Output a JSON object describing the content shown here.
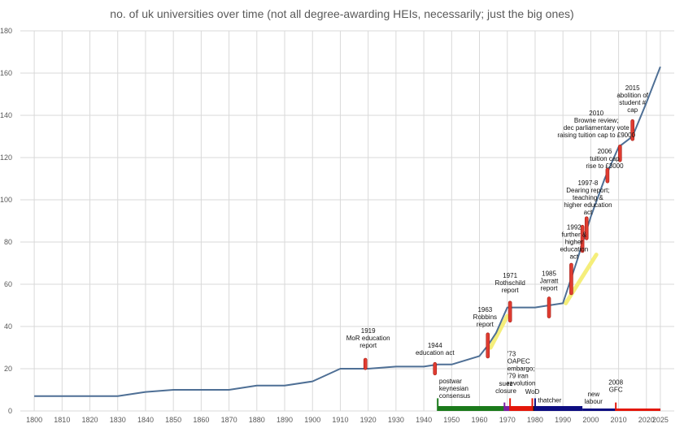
{
  "chart_data": {
    "type": "line",
    "title": "no. of uk universities over time (not all degree-awarding HEIs, necessarily; just the big ones)",
    "xlabel": "",
    "ylabel": "",
    "xlim": [
      1795,
      2030
    ],
    "ylim": [
      0,
      180
    ],
    "x_ticks": [
      1800,
      1810,
      1820,
      1830,
      1840,
      1850,
      1860,
      1870,
      1880,
      1890,
      1900,
      1910,
      1920,
      1930,
      1940,
      1950,
      1960,
      1970,
      1980,
      1990,
      2000,
      2010,
      2020,
      2025
    ],
    "y_ticks": [
      0,
      20,
      40,
      60,
      80,
      100,
      120,
      140,
      160,
      180
    ],
    "grid": true,
    "colors": {
      "line": "#4e6f95",
      "grid": "#d9d9d9",
      "marker": "#e03c31",
      "marker_border": "#a11c14",
      "highlight": "#f5ee7a",
      "era_postwar": "#1b7a1b",
      "era_suez": "#7a1fa2",
      "era_oapec": "#e3170a",
      "era_wod": "#1a1a1a",
      "era_thatcher": "#0d0d80",
      "era_new_labour": "#0d0d80",
      "era_gfc": "#e3170a"
    },
    "series": [
      {
        "name": "no. of uk universities",
        "x": [
          1800,
          1830,
          1840,
          1850,
          1860,
          1870,
          1880,
          1890,
          1900,
          1910,
          1920,
          1930,
          1940,
          1945,
          1950,
          1960,
          1963,
          1966,
          1970,
          1975,
          1980,
          1985,
          1990,
          1995,
          2000,
          2005,
          2010,
          2015,
          2020,
          2025
        ],
        "y": [
          7,
          7,
          9,
          10,
          10,
          10,
          12,
          12,
          14,
          20,
          20,
          21,
          21,
          22,
          22,
          26,
          31,
          37,
          49,
          49,
          49,
          50,
          51,
          71,
          92,
          110,
          125,
          130,
          146,
          163
        ]
      }
    ],
    "event_markers": [
      {
        "x": 1919,
        "y": 19.5,
        "y2": 25
      },
      {
        "x": 1944,
        "y": 17,
        "y2": 23
      },
      {
        "x": 1963,
        "y": 25,
        "y2": 37
      },
      {
        "x": 1971,
        "y": 42,
        "y2": 52
      },
      {
        "x": 1985,
        "y": 44,
        "y2": 54
      },
      {
        "x": 1993,
        "y": 55,
        "y2": 70
      },
      {
        "x": 1997,
        "y": 75,
        "y2": 88
      },
      {
        "x": 1998.5,
        "y": 81,
        "y2": 92
      },
      {
        "x": 2006,
        "y": 108,
        "y2": 115
      },
      {
        "x": 2010.5,
        "y": 118,
        "y2": 126
      },
      {
        "x": 2015,
        "y": 128,
        "y2": 138
      }
    ],
    "highlights": [
      {
        "x1": 1964,
        "y1": 30,
        "x2": 1970,
        "y2": 45
      },
      {
        "x1": 1991,
        "y1": 51,
        "x2": 2002,
        "y2": 74
      }
    ],
    "annotations": [
      {
        "lines": [
          "1919",
          "MoR education",
          "report"
        ],
        "x": 1920,
        "y": 37,
        "anchor": "middle"
      },
      {
        "lines": [
          "1944",
          "education act"
        ],
        "x": 1944,
        "y": 30,
        "anchor": "middle"
      },
      {
        "lines": [
          "1963",
          "Robbins",
          "report"
        ],
        "x": 1962,
        "y": 47,
        "anchor": "middle"
      },
      {
        "lines": [
          "1971",
          "Rothschild",
          "report"
        ],
        "x": 1971,
        "y": 63,
        "anchor": "middle"
      },
      {
        "lines": [
          "1985",
          "Jarratt",
          "report"
        ],
        "x": 1985,
        "y": 64,
        "anchor": "middle"
      },
      {
        "lines": [
          "1992",
          "further &",
          "higher",
          "education",
          "act"
        ],
        "x": 1994,
        "y": 86,
        "anchor": "middle"
      },
      {
        "lines": [
          "1997-8",
          "Dearing report;",
          "teaching &",
          "higher education",
          "act"
        ],
        "x": 1999,
        "y": 107,
        "anchor": "middle"
      },
      {
        "lines": [
          "2006",
          "tuition cap",
          "rise to £3000"
        ],
        "x": 2005,
        "y": 122,
        "anchor": "middle"
      },
      {
        "lines": [
          "2010",
          "Browne review;",
          "dec parliamentary vote",
          "raising tuition cap to £9000"
        ],
        "x": 2002,
        "y": 140,
        "anchor": "middle"
      },
      {
        "lines": [
          "2015",
          "abolition of",
          "student #",
          "cap"
        ],
        "x": 2015,
        "y": 152,
        "anchor": "middle"
      },
      {
        "lines": [
          "'73",
          "OAPEC",
          "embargo;",
          "'79 iran",
          "revolution"
        ],
        "x": 1970,
        "y": 26,
        "anchor": "start"
      },
      {
        "lines": [
          "postwar",
          "keynesian",
          "consensus"
        ],
        "x": 1945.5,
        "y": 13,
        "anchor": "start"
      },
      {
        "lines": [
          "suez",
          "closure"
        ],
        "x": 1969.5,
        "y": 12,
        "anchor": "middle"
      },
      {
        "lines": [
          "WoD"
        ],
        "x": 1979,
        "y": 8,
        "anchor": "middle"
      },
      {
        "lines": [
          "thatcher"
        ],
        "x": 1981,
        "y": 4,
        "anchor": "start"
      },
      {
        "lines": [
          "new",
          "labour"
        ],
        "x": 2001,
        "y": 7,
        "anchor": "middle"
      },
      {
        "lines": [
          "2008",
          "GFC"
        ],
        "x": 2009,
        "y": 12.5,
        "anchor": "middle"
      }
    ],
    "era_bars": [
      {
        "name": "postwar keynesian consensus",
        "x1": 1945,
        "x2": 1969,
        "color": "#1b7a1b",
        "thick": 6
      },
      {
        "name": "suez closure",
        "x1": 1969,
        "x2": 1971,
        "color": "#7a1fa2",
        "thick": 6
      },
      {
        "name": "OAPEC / iran",
        "x1": 1971,
        "x2": 1979,
        "color": "#e3170a",
        "thick": 6
      },
      {
        "name": "WoD",
        "x1": 1979,
        "x2": 1980,
        "color": "#1a1a1a",
        "thick": 6
      },
      {
        "name": "thatcher",
        "x1": 1980,
        "x2": 1997,
        "color": "#0d0d80",
        "thick": 6
      },
      {
        "name": "new labour",
        "x1": 1997,
        "x2": 2025,
        "color": "#0d0d80",
        "thick": 3
      },
      {
        "name": "GFC",
        "x1": 2009,
        "x2": 2025,
        "color": "#e3170a",
        "thick": 3
      }
    ],
    "era_ticks": [
      {
        "x": 1945,
        "h": 6,
        "color": "#1b7a1b"
      },
      {
        "x": 1969,
        "h": 4,
        "color": "#7a1fa2"
      },
      {
        "x": 1971,
        "h": 6,
        "color": "#e3170a"
      },
      {
        "x": 1979,
        "h": 6,
        "color": "#e3170a"
      },
      {
        "x": 1980,
        "h": 6,
        "color": "#0d0d80"
      },
      {
        "x": 2009,
        "h": 4,
        "color": "#e3170a"
      }
    ]
  }
}
